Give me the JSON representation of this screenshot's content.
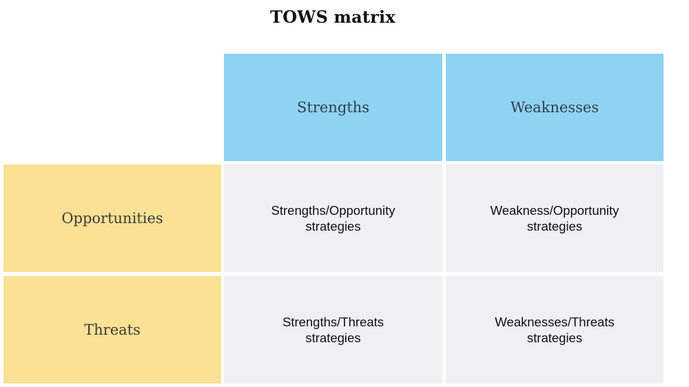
{
  "title": "TOWS matrix",
  "colors": {
    "header_fill": "#8ed3f1",
    "side_fill": "#fae193",
    "body_fill": "#f0f0f4"
  },
  "columns": [
    "Strengths",
    "Weaknesses"
  ],
  "rows": [
    "Opportunities",
    "Threats"
  ],
  "cells": [
    [
      {
        "line1": "Strengths/Opportunity",
        "line2": "strategies"
      },
      {
        "line1": "Weakness/Opportunity",
        "line2": "strategies"
      }
    ],
    [
      {
        "line1": "Strengths/Threats",
        "line2": "strategies"
      },
      {
        "line1": "Weaknesses/Threats",
        "line2": "strategies"
      }
    ]
  ]
}
